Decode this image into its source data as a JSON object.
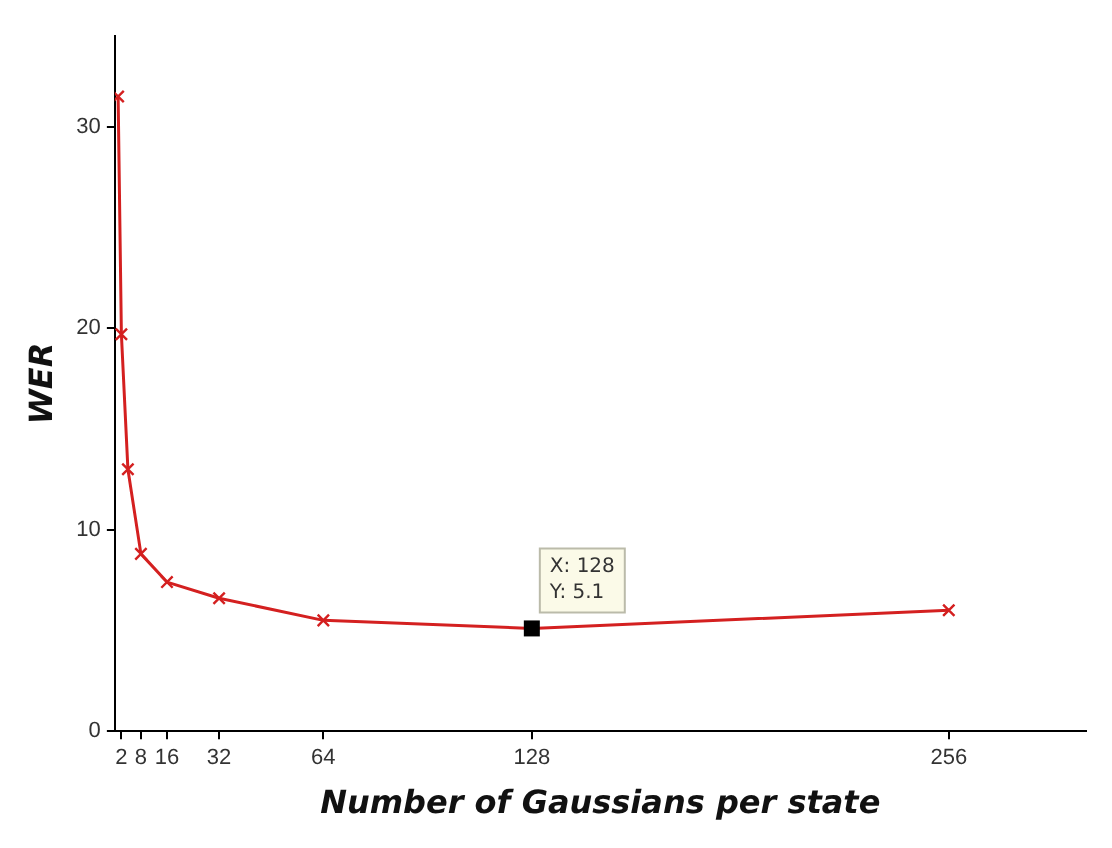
{
  "chart_data": {
    "type": "line",
    "xlabel": "Number of Gaussians per state",
    "ylabel": "WER",
    "x": [
      1,
      2,
      4,
      8,
      16,
      32,
      64,
      128,
      256
    ],
    "series": [
      {
        "color": "#d42020",
        "values": [
          31.5,
          19.7,
          13,
          8.8,
          7.4,
          6.6,
          5.5,
          5.1,
          6.0
        ]
      }
    ],
    "xlim": [
      0,
      298
    ],
    "xticks": [
      2,
      8,
      16,
      32,
      64,
      128,
      256
    ],
    "ylim": [
      0,
      34.5
    ],
    "yticks": [
      0,
      10,
      20,
      30
    ],
    "grid": false,
    "legend": false,
    "marker": "cross",
    "line_style": "solid",
    "annotations": [
      {
        "text": "X: 128\nY: 5.1",
        "x": 128,
        "y": 5.1
      }
    ]
  }
}
